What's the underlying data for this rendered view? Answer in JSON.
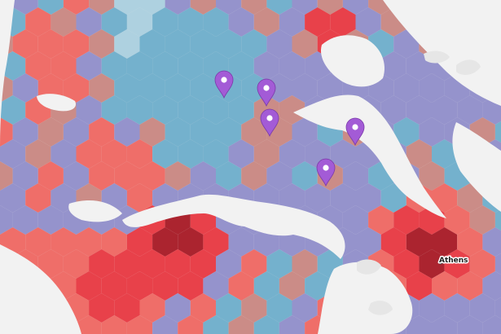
{
  "map": {
    "labels": [
      {
        "text": "Athens"
      }
    ],
    "markers": [
      {
        "name": "map-marker-1",
        "color": "#a35bd6"
      },
      {
        "name": "map-marker-2",
        "color": "#a35bd6"
      },
      {
        "name": "map-marker-3",
        "color": "#a35bd6"
      },
      {
        "name": "map-marker-4",
        "color": "#a35bd6"
      },
      {
        "name": "map-marker-5",
        "color": "#a35bd6"
      }
    ],
    "palette": {
      "land": "#e6e6e6",
      "sea": "#f2f2f2",
      "hex_darkred": "#a6141f",
      "hex_red": "#e8333d",
      "hex_salmon": "#f0645e",
      "hex_rose": "#c9847f",
      "hex_periwinkle": "#8e8cca",
      "hex_teal": "#6aaccb",
      "hex_lightblue": "#a9cfe0"
    }
  }
}
